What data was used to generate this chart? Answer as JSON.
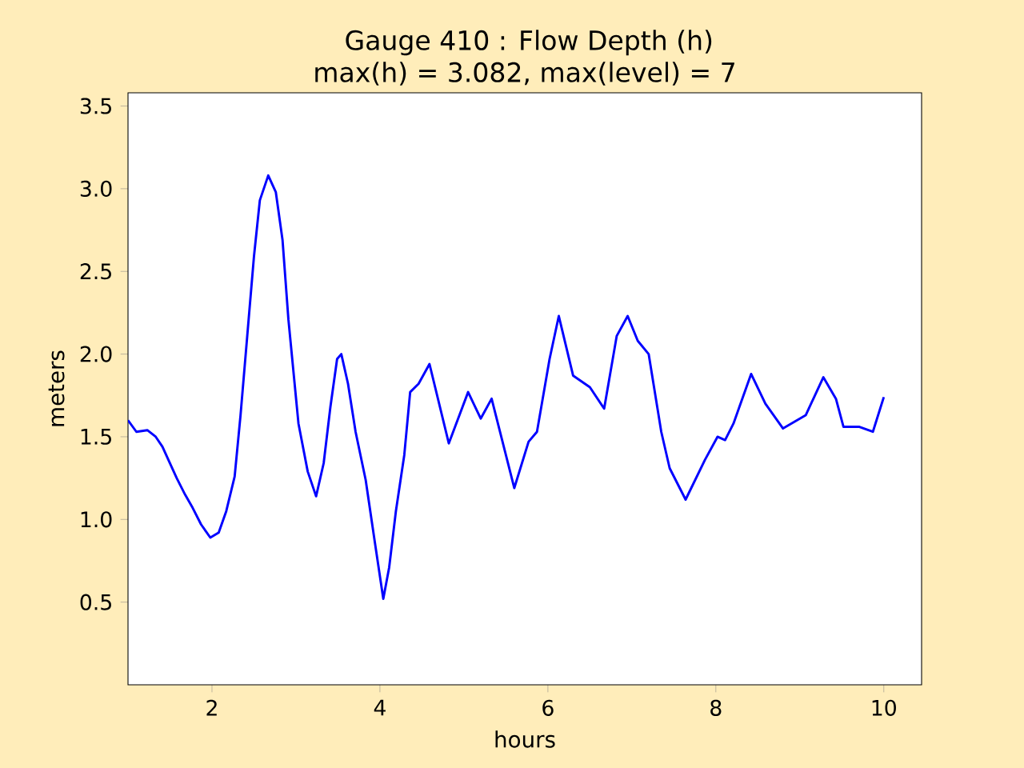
{
  "chart_data": {
    "type": "line",
    "title": "Gauge 410 : Flow Depth (h)",
    "subtitle": "max(h) =   3.082,    max(level) = 7",
    "xlabel": "hours",
    "ylabel": "meters",
    "x": [
      1.0,
      1.1,
      1.23,
      1.33,
      1.41,
      1.49,
      1.58,
      1.68,
      1.77,
      1.87,
      1.98,
      2.08,
      2.17,
      2.27,
      2.34,
      2.42,
      2.5,
      2.57,
      2.67,
      2.76,
      2.84,
      2.91,
      3.03,
      3.14,
      3.24,
      3.33,
      3.41,
      3.49,
      3.54,
      3.62,
      3.71,
      3.83,
      3.94,
      4.04,
      4.11,
      4.19,
      4.29,
      4.36,
      4.46,
      4.59,
      4.82,
      5.05,
      5.2,
      5.33,
      5.6,
      5.77,
      5.87,
      6.02,
      6.13,
      6.3,
      6.5,
      6.67,
      6.82,
      6.95,
      7.07,
      7.2,
      7.35,
      7.45,
      7.64,
      7.87,
      8.02,
      8.11,
      8.21,
      8.42,
      8.59,
      8.8,
      9.07,
      9.28,
      9.43,
      9.52,
      9.71,
      9.87,
      10.0
    ],
    "series": [
      {
        "color": "#0000ff",
        "values": [
          1.6,
          1.53,
          1.54,
          1.5,
          1.44,
          1.35,
          1.25,
          1.15,
          1.07,
          0.97,
          0.89,
          0.92,
          1.05,
          1.26,
          1.63,
          2.11,
          2.59,
          2.93,
          3.08,
          2.98,
          2.69,
          2.21,
          1.58,
          1.29,
          1.14,
          1.34,
          1.68,
          1.97,
          2.0,
          1.82,
          1.53,
          1.24,
          0.86,
          0.52,
          0.71,
          1.05,
          1.39,
          1.77,
          1.82,
          1.94,
          1.46,
          1.77,
          1.61,
          1.73,
          1.19,
          1.47,
          1.53,
          1.97,
          2.23,
          1.87,
          1.8,
          1.67,
          2.11,
          2.23,
          2.08,
          2.0,
          1.53,
          1.31,
          1.12,
          1.36,
          1.5,
          1.48,
          1.58,
          1.88,
          1.7,
          1.55,
          1.63,
          1.86,
          1.73,
          1.56,
          1.56,
          1.53,
          1.74
        ]
      }
    ],
    "xlim": [
      1.0,
      10.45
    ],
    "ylim": [
      0,
      3.58
    ],
    "xticks": [
      2,
      4,
      6,
      8,
      10
    ],
    "yticks": [
      0.5,
      {
        "value": 1.0,
        "label": "1.0"
      },
      1.5,
      {
        "value": 2.0,
        "label": "2.0"
      },
      2.5,
      {
        "value": 3.0,
        "label": "3.0"
      },
      3.5
    ],
    "grid": false,
    "marker": "none",
    "line_style": "solid"
  }
}
